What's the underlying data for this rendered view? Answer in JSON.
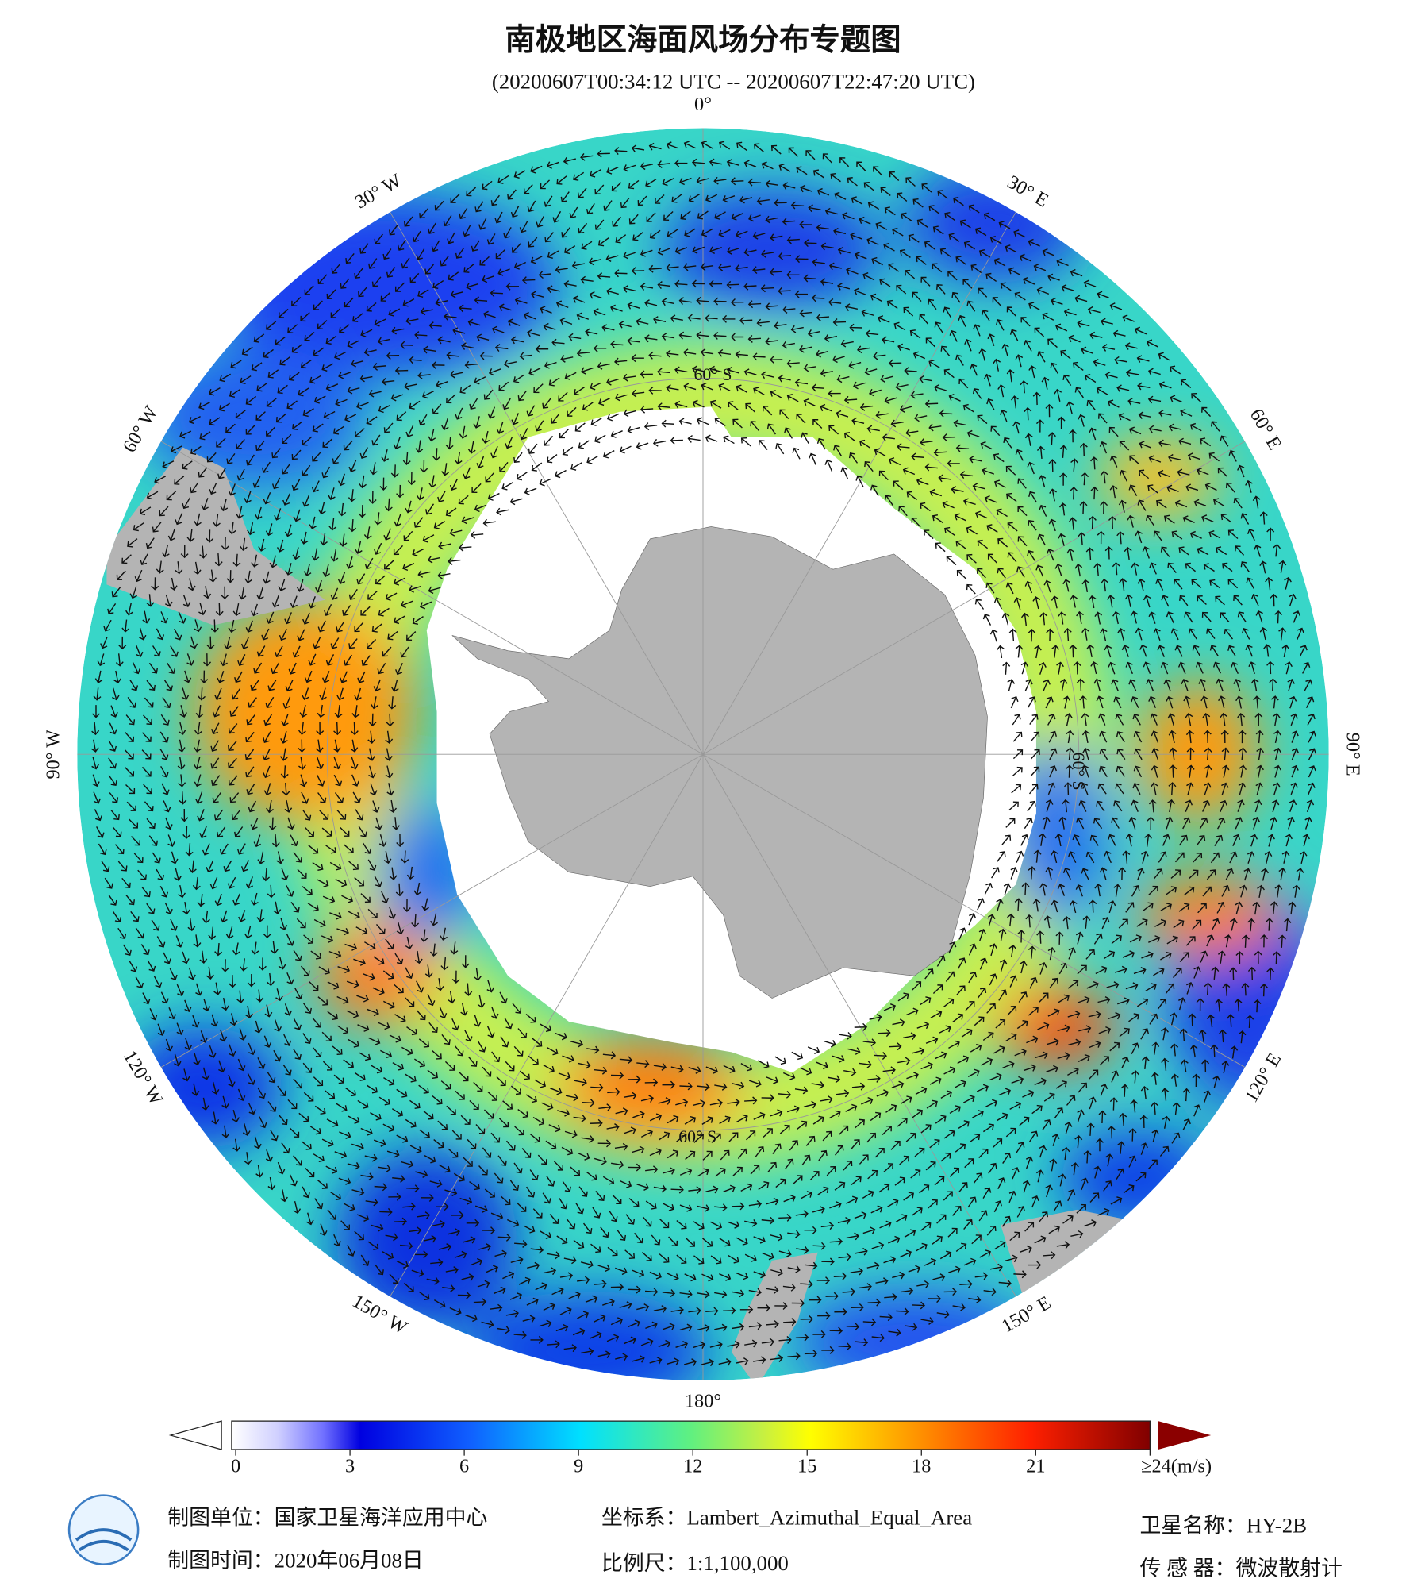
{
  "map": {
    "title": "南极地区海面风场分布专题图",
    "subtitle": "(20200607T00:34:12 UTC -- 20200607T22:47:20 UTC)",
    "longitude_labels": [
      "0°",
      "30° E",
      "60° E",
      "90° E",
      "120° E",
      "150° E",
      "180°",
      "150° W",
      "120° W",
      "90° W",
      "60° W",
      "30° W"
    ],
    "latitude_label": "60° S",
    "colorbar": {
      "lim": [
        0,
        24
      ],
      "ticks": [
        0,
        3,
        6,
        9,
        12,
        15,
        18,
        21,
        {
          "value": 24,
          "label": "≥24(m/s)"
        }
      ]
    },
    "footer": {
      "unit": "制图单位：国家卫星海洋应用中心",
      "time": "制图时间：2020年06月08日",
      "crs": "坐标系：Lambert_Azimuthal_Equal_Area",
      "scale": "比例尺：1:1,100,000",
      "satellite": "卫星名称：HY-2B",
      "sensor": "传 感 器：微波散射计"
    }
  }
}
